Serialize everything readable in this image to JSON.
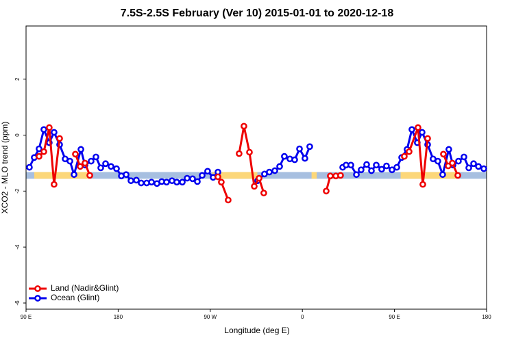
{
  "chart_data": {
    "type": "line",
    "title": "7.5S-2.5S February (Ver 10)   2015-01-01 to 2020-12-18",
    "x_label": "Longitude (deg E)",
    "y_label": "XCO2 - MLO trend (ppm)",
    "xlim": [
      90,
      540
    ],
    "xticks": [
      {
        "value": 90,
        "label": "90 E"
      },
      180,
      {
        "value": 270,
        "label": "90 W"
      },
      {
        "value": 360,
        "label": "0"
      },
      {
        "value": 450,
        "label": "90 E"
      },
      {
        "value": 540,
        "label": "180"
      }
    ],
    "ylim": [
      -6.22,
      3.9
    ],
    "yticks": [
      -6,
      -4,
      -2,
      0,
      2
    ],
    "legend": "bottom-left",
    "reference_band": {
      "range": [
        -1.56,
        -1.32
      ],
      "ocean_color": "#a7bfe0",
      "land_color": "#fcd779",
      "land_spans": [
        [
          98,
          152
        ],
        [
          272,
          316
        ],
        [
          369,
          374
        ],
        [
          456,
          510
        ]
      ]
    },
    "series": [
      {
        "name": "Ocean (Glint)",
        "color": "#0000ee",
        "x": [
          93.3,
          98,
          102.7,
          107.4,
          112.7,
          117.4,
          122.8,
          128.2,
          132.9,
          136.9,
          143.6,
          147.6,
          153.6,
          158.3,
          163,
          167.7,
          173,
          178.4,
          183.1,
          187.8,
          192.5,
          197.8,
          202.5,
          207.9,
          212.6,
          217.9,
          222.6,
          227.3,
          232.6,
          237.3,
          242.7,
          247.4,
          252.7,
          257.4,
          262.1,
          267.4,
          272.8,
          277.5,
          null,
          316.3,
          323,
          327.7,
          333.1,
          337.8,
          342.4,
          347.8,
          352.5,
          357.2,
          362.5,
          367.2,
          null,
          399.4,
          402.7,
          407.4,
          412.8,
          417.4,
          422.8,
          427.5,
          432.2,
          437.5,
          442.2,
          447.6,
          452.3,
          457,
          462.3,
          467,
          472.3,
          477,
          482.4,
          487.7,
          492.4,
          497.1,
          503.1,
          507.2,
          512.5,
          517.9,
          522.6,
          527.3,
          532,
          537.3
        ],
        "values": [
          -1.15,
          -0.8,
          -0.49,
          0.2,
          -0.27,
          0.1,
          -0.34,
          -0.85,
          -0.93,
          -1.41,
          -0.51,
          -1.07,
          -0.93,
          -0.78,
          -1.17,
          -1.02,
          -1.12,
          -1.2,
          -1.46,
          -1.41,
          -1.63,
          -1.61,
          -1.71,
          -1.71,
          -1.68,
          -1.73,
          -1.66,
          -1.68,
          -1.63,
          -1.68,
          -1.68,
          -1.54,
          -1.56,
          -1.66,
          -1.44,
          -1.29,
          -1.51,
          -1.32,
          null,
          -1.63,
          -1.39,
          -1.32,
          -1.27,
          -1.12,
          -0.76,
          -0.85,
          -0.88,
          -0.49,
          -0.83,
          -0.41,
          null,
          -1.15,
          -1.07,
          -1.07,
          -1.41,
          -1.24,
          -1.05,
          -1.27,
          -1.07,
          -1.22,
          -1.1,
          -1.24,
          -1.15,
          -0.8,
          -0.51,
          0.2,
          -0.27,
          0.1,
          -0.34,
          -0.85,
          -0.93,
          -1.41,
          -0.51,
          -1.07,
          -0.93,
          -0.78,
          -1.17,
          -1.02,
          -1.12,
          -1.2
        ]
      },
      {
        "name": "Land (Nadir&Glint)",
        "color": "#ee0000",
        "x": [
          102.7,
          107.4,
          112.7,
          117.4,
          122.8,
          null,
          138.2,
          142.9,
          147.6,
          152.3,
          null,
          277.5,
          280.8,
          287.5,
          null,
          298.2,
          302.9,
          308.3,
          313,
          317.7,
          322.3,
          null,
          383.3,
          387.3,
          392.7,
          397.3,
          null,
          459.6,
          464.3,
          473,
          477.7,
          482.4,
          null,
          497.8,
          502.5,
          506.5,
          511.9
        ],
        "values": [
          -0.76,
          -0.59,
          0.27,
          -1.76,
          -0.12,
          null,
          -0.68,
          -1.12,
          -1.0,
          -1.44,
          null,
          -1.49,
          -1.68,
          -2.32,
          null,
          -0.66,
          0.32,
          -0.61,
          -1.83,
          -1.54,
          -2.07,
          null,
          -2,
          -1.46,
          -1.46,
          -1.44,
          null,
          -0.76,
          -0.59,
          0.27,
          -1.76,
          -0.12,
          null,
          -0.68,
          -1.1,
          -1.0,
          -1.44
        ]
      }
    ]
  }
}
